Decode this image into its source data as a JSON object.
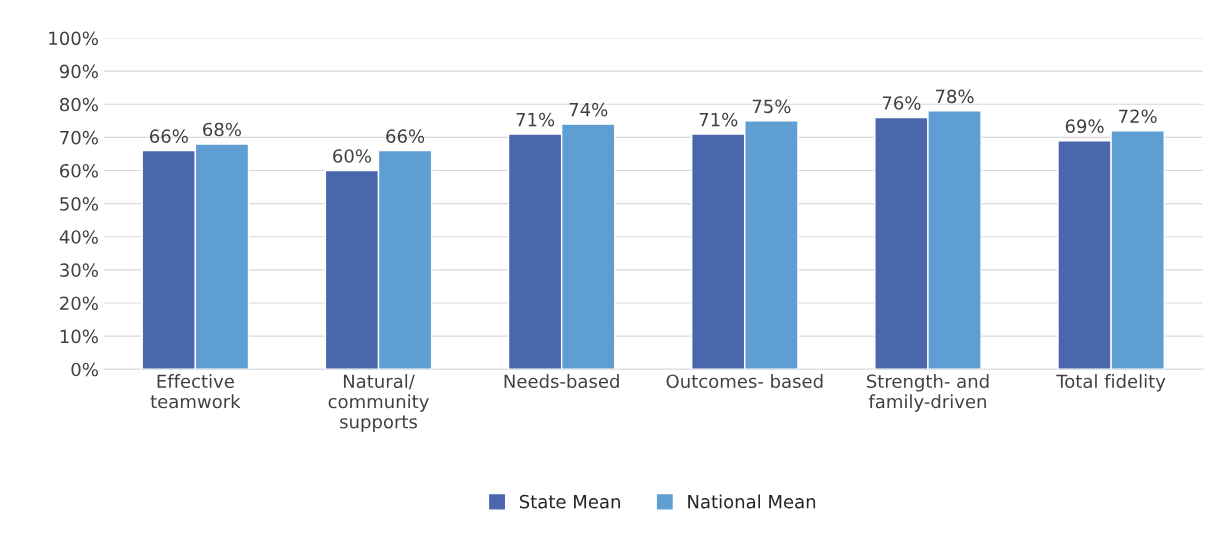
{
  "chart_data": {
    "type": "bar",
    "categories": [
      "Effective\nteamwork",
      "Natural/\ncommunity\nsupports",
      "Needs-based",
      "Outcomes- based",
      "Strength- and\nfamily-driven",
      "Total fidelity"
    ],
    "series": [
      {
        "name": "State Mean",
        "color": "#4a66ac",
        "values": [
          66,
          60,
          71,
          71,
          76,
          69
        ],
        "value_labels": [
          "66%",
          "60%",
          "71%",
          "71%",
          "76%",
          "69%"
        ]
      },
      {
        "name": "National Mean",
        "color": "#5f9ed3",
        "values": [
          68,
          66,
          74,
          75,
          78,
          72
        ],
        "value_labels": [
          "68%",
          "66%",
          "74%",
          "75%",
          "78%",
          "72%"
        ]
      }
    ],
    "ylim": [
      0,
      100
    ],
    "yticks": [
      {
        "value": 0,
        "label": "0%"
      },
      {
        "value": 10,
        "label": "10%"
      },
      {
        "value": 20,
        "label": "20%"
      },
      {
        "value": 30,
        "label": "30%"
      },
      {
        "value": 40,
        "label": "40%"
      },
      {
        "value": 50,
        "label": "50%"
      },
      {
        "value": 60,
        "label": "60%"
      },
      {
        "value": 70,
        "label": "70%"
      },
      {
        "value": 80,
        "label": "80%"
      },
      {
        "value": 90,
        "label": "90%"
      },
      {
        "value": 100,
        "label": "100%"
      }
    ],
    "grid": "y",
    "legend": "bottom"
  }
}
